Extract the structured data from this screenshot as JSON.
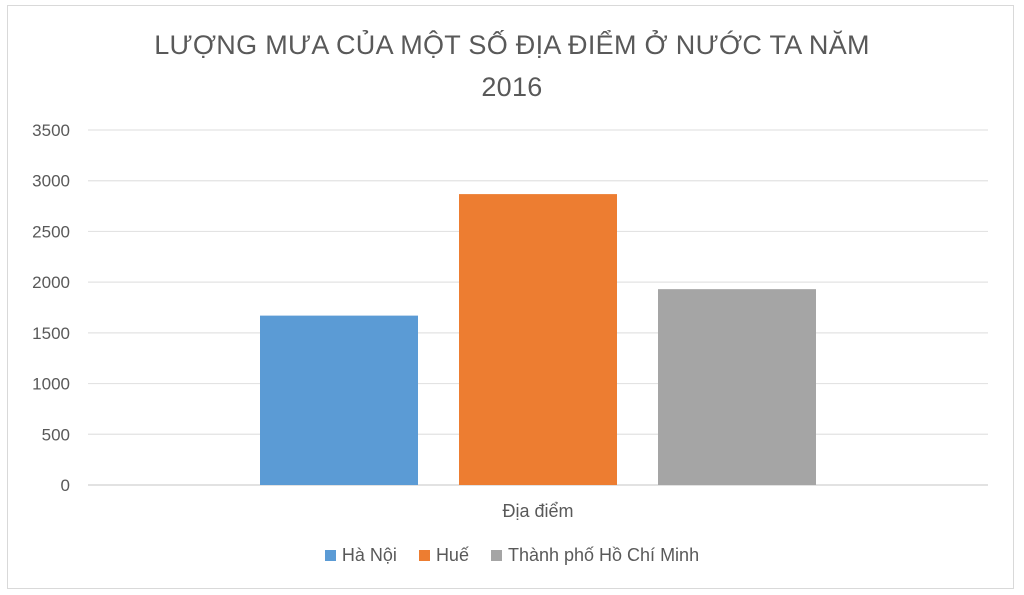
{
  "chart_data": {
    "type": "bar",
    "title_line1": "LƯỢNG MƯA CỦA MỘT SỐ ĐỊA ĐIỂM Ở NƯỚC TA NĂM",
    "title_line2": "2016",
    "xlabel": "Địa điểm",
    "ylabel": "",
    "ylim": [
      0,
      3500
    ],
    "yticks": [
      0,
      500,
      1000,
      1500,
      2000,
      2500,
      3000,
      3500
    ],
    "grid": true,
    "legend_position": "bottom",
    "categories": [
      "Địa điểm"
    ],
    "series": [
      {
        "name": "Hà Nội",
        "values": [
          1670
        ],
        "color": "#5b9bd5"
      },
      {
        "name": "Huế",
        "values": [
          2868
        ],
        "color": "#ed7d31"
      },
      {
        "name": "Thành phố Hồ Chí Minh",
        "values": [
          1931
        ],
        "color": "#a5a5a5"
      }
    ]
  }
}
